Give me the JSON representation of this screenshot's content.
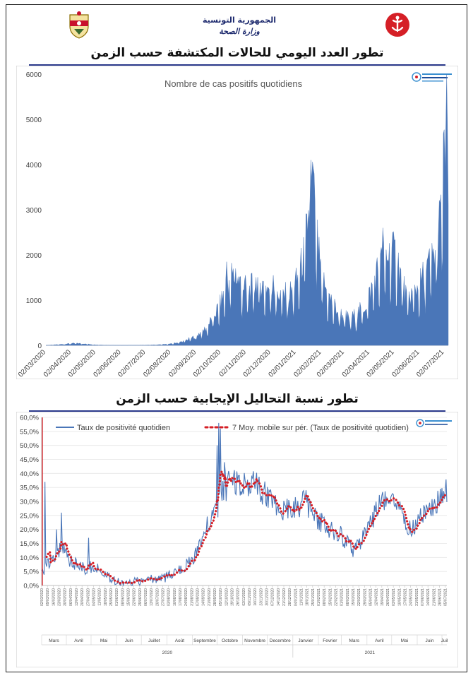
{
  "header": {
    "line1": "الجمهورية التونسية",
    "line2": "وزارة الصحة",
    "colors": {
      "accent": "#2b3a8c",
      "logo_red": "#d51f26",
      "emblem_red": "#c8102e",
      "emblem_gold": "#d9a400"
    }
  },
  "titles": {
    "chart1": "تطور العدد اليومي للحالات المكتشفة حسب الزمن",
    "chart2": "تطور نسبة التحاليل الإيجابية حسب الزمن"
  },
  "chart_data": [
    {
      "type": "area",
      "title": "Nombre de cas positifs quotidiens",
      "xlabel": "",
      "ylabel": "",
      "ylim": [
        0,
        6000
      ],
      "yticks": [
        "0",
        "1000",
        "2000",
        "3000",
        "4000",
        "5000",
        "6000"
      ],
      "xticks": [
        "02/03/2020",
        "02/04/2020",
        "02/05/2020",
        "02/06/2020",
        "02/07/2020",
        "02/08/2020",
        "02/09/2020",
        "02/10/2020",
        "02/11/2020",
        "02/12/2020",
        "02/01/2021",
        "02/02/2021",
        "02/03/2021",
        "02/04/2021",
        "02/05/2021",
        "02/06/2021",
        "02/07/2021"
      ],
      "x_start": "2020-03-02",
      "x_end": "2021-07-07",
      "series_color": "#4a76b8",
      "keypoints": [
        [
          "2020-03-02",
          0
        ],
        [
          "2020-03-20",
          20
        ],
        [
          "2020-04-01",
          40
        ],
        [
          "2020-04-10",
          45
        ],
        [
          "2020-04-20",
          30
        ],
        [
          "2020-05-01",
          12
        ],
        [
          "2020-05-15",
          5
        ],
        [
          "2020-06-01",
          2
        ],
        [
          "2020-07-01",
          5
        ],
        [
          "2020-07-20",
          15
        ],
        [
          "2020-08-01",
          30
        ],
        [
          "2020-08-15",
          80
        ],
        [
          "2020-09-01",
          200
        ],
        [
          "2020-09-15",
          400
        ],
        [
          "2020-10-01",
          900
        ],
        [
          "2020-10-08",
          1300
        ],
        [
          "2020-10-15",
          1550
        ],
        [
          "2020-10-25",
          1400
        ],
        [
          "2020-11-05",
          1200
        ],
        [
          "2020-11-15",
          1450
        ],
        [
          "2020-11-25",
          1300
        ],
        [
          "2020-12-05",
          1250
        ],
        [
          "2020-12-15",
          1100
        ],
        [
          "2020-12-25",
          1150
        ],
        [
          "2021-01-05",
          1500
        ],
        [
          "2021-01-12",
          2100
        ],
        [
          "2021-01-18",
          3000
        ],
        [
          "2021-01-22",
          3500
        ],
        [
          "2021-01-26",
          2600
        ],
        [
          "2021-02-01",
          1600
        ],
        [
          "2021-02-10",
          1100
        ],
        [
          "2021-02-20",
          800
        ],
        [
          "2021-03-01",
          650
        ],
        [
          "2021-03-10",
          600
        ],
        [
          "2021-03-20",
          750
        ],
        [
          "2021-03-28",
          900
        ],
        [
          "2021-04-05",
          1300
        ],
        [
          "2021-04-12",
          1700
        ],
        [
          "2021-04-20",
          1950
        ],
        [
          "2021-04-28",
          2050
        ],
        [
          "2021-05-05",
          2000
        ],
        [
          "2021-05-12",
          1400
        ],
        [
          "2021-05-18",
          1000
        ],
        [
          "2021-05-25",
          1200
        ],
        [
          "2021-06-01",
          1300
        ],
        [
          "2021-06-10",
          1700
        ],
        [
          "2021-06-20",
          2000
        ],
        [
          "2021-06-28",
          2900
        ],
        [
          "2021-07-03",
          4500
        ],
        [
          "2021-07-07",
          5800
        ]
      ],
      "peaks": [
        [
          "2020-10-09",
          1850
        ],
        [
          "2020-10-20",
          1700
        ],
        [
          "2020-12-05",
          1550
        ],
        [
          "2021-01-20",
          4100
        ],
        [
          "2021-01-24",
          3800
        ],
        [
          "2021-04-18",
          2600
        ],
        [
          "2021-04-30",
          2500
        ],
        [
          "2021-06-26",
          3100
        ],
        [
          "2021-07-05",
          6000
        ]
      ]
    },
    {
      "type": "line",
      "title": "",
      "xlabel": "",
      "ylabel": "",
      "ylim": [
        0,
        60
      ],
      "yticks": [
        "0,0%",
        "5,0%",
        "10,0%",
        "15,0%",
        "20,0%",
        "25,0%",
        "30,0%",
        "35,0%",
        "40,0%",
        "45,0%",
        "50,0%",
        "55,0%",
        "60,0%"
      ],
      "x_start": "2020-03-02",
      "x_end": "2021-07-07",
      "series": [
        {
          "name": "Taux de positivité quotidien",
          "color": "#4a76b8",
          "style": "solid"
        },
        {
          "name": "7 Moy. mobile sur pér. (Taux de positivité quotidien)",
          "color": "#d51f26",
          "style": "dotted"
        }
      ],
      "keypoints": [
        [
          "2020-03-02",
          4
        ],
        [
          "2020-03-10",
          8
        ],
        [
          "2020-03-18",
          10
        ],
        [
          "2020-03-28",
          14
        ],
        [
          "2020-04-05",
          9
        ],
        [
          "2020-04-15",
          7
        ],
        [
          "2020-04-25",
          6
        ],
        [
          "2020-05-05",
          7
        ],
        [
          "2020-05-15",
          5
        ],
        [
          "2020-05-25",
          2
        ],
        [
          "2020-06-05",
          1
        ],
        [
          "2020-06-20",
          1
        ],
        [
          "2020-07-05",
          2
        ],
        [
          "2020-07-20",
          2.5
        ],
        [
          "2020-08-01",
          3
        ],
        [
          "2020-08-10",
          5
        ],
        [
          "2020-08-20",
          6
        ],
        [
          "2020-09-01",
          9
        ],
        [
          "2020-09-10",
          14
        ],
        [
          "2020-09-20",
          22
        ],
        [
          "2020-10-01",
          26
        ],
        [
          "2020-10-08",
          34
        ],
        [
          "2020-10-15",
          36
        ],
        [
          "2020-10-25",
          38
        ],
        [
          "2020-11-05",
          37
        ],
        [
          "2020-11-15",
          36
        ],
        [
          "2020-11-25",
          33
        ],
        [
          "2020-12-05",
          30
        ],
        [
          "2020-12-15",
          28
        ],
        [
          "2020-12-25",
          27
        ],
        [
          "2021-01-05",
          28
        ],
        [
          "2021-01-15",
          30
        ],
        [
          "2021-01-25",
          27
        ],
        [
          "2021-02-05",
          22
        ],
        [
          "2021-02-15",
          20
        ],
        [
          "2021-02-25",
          19
        ],
        [
          "2021-03-05",
          16
        ],
        [
          "2021-03-15",
          13
        ],
        [
          "2021-03-22",
          14
        ],
        [
          "2021-04-01",
          20
        ],
        [
          "2021-04-10",
          25
        ],
        [
          "2021-04-20",
          30
        ],
        [
          "2021-05-01",
          29
        ],
        [
          "2021-05-10",
          27
        ],
        [
          "2021-05-20",
          22
        ],
        [
          "2021-05-28",
          20
        ],
        [
          "2021-06-05",
          24
        ],
        [
          "2021-06-15",
          27
        ],
        [
          "2021-06-25",
          30
        ],
        [
          "2021-07-01",
          34
        ],
        [
          "2021-07-07",
          35
        ]
      ],
      "spikes": [
        [
          "2020-03-06",
          37
        ],
        [
          "2020-03-20",
          20
        ],
        [
          "2020-03-26",
          26
        ],
        [
          "2020-04-28",
          17
        ],
        [
          "2020-10-01",
          50
        ],
        [
          "2020-10-03",
          58
        ],
        [
          "2020-10-05",
          56
        ],
        [
          "2020-10-10",
          44
        ],
        [
          "2021-01-17",
          34
        ]
      ],
      "months_2020": [
        "Mars",
        "Avril",
        "Mai",
        "Juin",
        "Juillet",
        "Août",
        "Septembre",
        "Octobre",
        "Novembre",
        "Decembre"
      ],
      "months_2021": [
        "Janvier",
        "Fevrier",
        "Mars",
        "Avril",
        "Mai",
        "Juin",
        "Juil"
      ],
      "year_labels": [
        "2020",
        "2021"
      ]
    }
  ]
}
